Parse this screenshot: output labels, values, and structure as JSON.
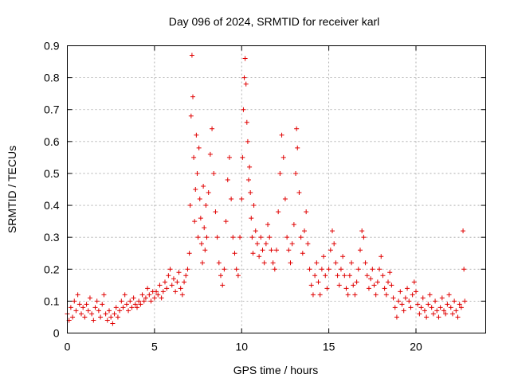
{
  "chart_data": {
    "type": "scatter",
    "title": "Day 096 of 2024, SRMTID for receiver karl",
    "xlabel": "GPS time / hours",
    "ylabel": "SRMTID / TECUs",
    "xlim": [
      0,
      24
    ],
    "ylim": [
      0,
      0.9
    ],
    "xticks": [
      0,
      5,
      10,
      15,
      20
    ],
    "xtick_labels": [
      "0",
      "5",
      "10",
      "15",
      "20"
    ],
    "yticks": [
      0,
      0.1,
      0.2,
      0.3,
      0.4,
      0.5,
      0.6,
      0.7,
      0.8,
      0.9
    ],
    "ytick_labels": [
      "0",
      "0.1",
      "0.2",
      "0.3",
      "0.4",
      "0.5",
      "0.6",
      "0.7",
      "0.8",
      "0.9"
    ],
    "grid": true,
    "marker": "+",
    "color": "#e00000",
    "series": [
      {
        "name": "SRMTID",
        "points": [
          [
            0.0,
            0.06
          ],
          [
            0.1,
            0.04
          ],
          [
            0.2,
            0.08
          ],
          [
            0.3,
            0.05
          ],
          [
            0.4,
            0.1
          ],
          [
            0.5,
            0.07
          ],
          [
            0.6,
            0.12
          ],
          [
            0.7,
            0.09
          ],
          [
            0.8,
            0.06
          ],
          [
            0.9,
            0.08
          ],
          [
            1.0,
            0.05
          ],
          [
            1.1,
            0.09
          ],
          [
            1.2,
            0.07
          ],
          [
            1.3,
            0.11
          ],
          [
            1.4,
            0.06
          ],
          [
            1.5,
            0.04
          ],
          [
            1.6,
            0.08
          ],
          [
            1.7,
            0.1
          ],
          [
            1.8,
            0.07
          ],
          [
            1.9,
            0.05
          ],
          [
            2.0,
            0.09
          ],
          [
            2.1,
            0.12
          ],
          [
            2.2,
            0.06
          ],
          [
            2.3,
            0.04
          ],
          [
            2.4,
            0.07
          ],
          [
            2.5,
            0.05
          ],
          [
            2.6,
            0.03
          ],
          [
            2.7,
            0.06
          ],
          [
            2.8,
            0.08
          ],
          [
            2.9,
            0.05
          ],
          [
            3.0,
            0.07
          ],
          [
            3.1,
            0.1
          ],
          [
            3.2,
            0.08
          ],
          [
            3.3,
            0.12
          ],
          [
            3.4,
            0.09
          ],
          [
            3.5,
            0.07
          ],
          [
            3.6,
            0.1
          ],
          [
            3.7,
            0.08
          ],
          [
            3.8,
            0.11
          ],
          [
            3.9,
            0.09
          ],
          [
            4.0,
            0.08
          ],
          [
            4.1,
            0.1
          ],
          [
            4.2,
            0.09
          ],
          [
            4.3,
            0.12
          ],
          [
            4.4,
            0.1
          ],
          [
            4.5,
            0.11
          ],
          [
            4.6,
            0.14
          ],
          [
            4.7,
            0.12
          ],
          [
            4.8,
            0.1
          ],
          [
            4.9,
            0.13
          ],
          [
            5.0,
            0.11
          ],
          [
            5.1,
            0.13
          ],
          [
            5.2,
            0.12
          ],
          [
            5.3,
            0.15
          ],
          [
            5.4,
            0.11
          ],
          [
            5.5,
            0.13
          ],
          [
            5.6,
            0.16
          ],
          [
            5.7,
            0.14
          ],
          [
            5.8,
            0.18
          ],
          [
            5.9,
            0.2
          ],
          [
            6.0,
            0.15
          ],
          [
            6.1,
            0.17
          ],
          [
            6.2,
            0.13
          ],
          [
            6.3,
            0.16
          ],
          [
            6.4,
            0.19
          ],
          [
            6.5,
            0.14
          ],
          [
            6.6,
            0.12
          ],
          [
            6.7,
            0.16
          ],
          [
            6.8,
            0.18
          ],
          [
            6.9,
            0.2
          ],
          [
            7.0,
            0.25
          ],
          [
            7.05,
            0.4
          ],
          [
            7.1,
            0.68
          ],
          [
            7.15,
            0.87
          ],
          [
            7.2,
            0.74
          ],
          [
            7.25,
            0.55
          ],
          [
            7.3,
            0.35
          ],
          [
            7.35,
            0.45
          ],
          [
            7.4,
            0.62
          ],
          [
            7.45,
            0.5
          ],
          [
            7.5,
            0.3
          ],
          [
            7.55,
            0.58
          ],
          [
            7.6,
            0.42
          ],
          [
            7.65,
            0.36
          ],
          [
            7.7,
            0.28
          ],
          [
            7.75,
            0.22
          ],
          [
            7.8,
            0.46
          ],
          [
            7.85,
            0.33
          ],
          [
            7.9,
            0.26
          ],
          [
            7.95,
            0.4
          ],
          [
            8.0,
            0.3
          ],
          [
            8.1,
            0.44
          ],
          [
            8.2,
            0.56
          ],
          [
            8.3,
            0.64
          ],
          [
            8.4,
            0.5
          ],
          [
            8.5,
            0.38
          ],
          [
            8.6,
            0.3
          ],
          [
            8.7,
            0.22
          ],
          [
            8.8,
            0.18
          ],
          [
            8.9,
            0.15
          ],
          [
            9.0,
            0.2
          ],
          [
            9.1,
            0.35
          ],
          [
            9.2,
            0.48
          ],
          [
            9.3,
            0.55
          ],
          [
            9.4,
            0.42
          ],
          [
            9.5,
            0.3
          ],
          [
            9.6,
            0.25
          ],
          [
            9.7,
            0.2
          ],
          [
            9.8,
            0.18
          ],
          [
            9.9,
            0.3
          ],
          [
            10.0,
            0.42
          ],
          [
            10.05,
            0.55
          ],
          [
            10.1,
            0.7
          ],
          [
            10.15,
            0.8
          ],
          [
            10.2,
            0.86
          ],
          [
            10.25,
            0.78
          ],
          [
            10.3,
            0.66
          ],
          [
            10.35,
            0.6
          ],
          [
            10.4,
            0.48
          ],
          [
            10.45,
            0.52
          ],
          [
            10.5,
            0.44
          ],
          [
            10.55,
            0.36
          ],
          [
            10.6,
            0.3
          ],
          [
            10.65,
            0.25
          ],
          [
            10.7,
            0.4
          ],
          [
            10.8,
            0.32
          ],
          [
            10.9,
            0.28
          ],
          [
            11.0,
            0.24
          ],
          [
            11.1,
            0.3
          ],
          [
            11.2,
            0.26
          ],
          [
            11.3,
            0.22
          ],
          [
            11.4,
            0.28
          ],
          [
            11.5,
            0.34
          ],
          [
            11.6,
            0.3
          ],
          [
            11.7,
            0.26
          ],
          [
            11.8,
            0.22
          ],
          [
            11.9,
            0.2
          ],
          [
            12.0,
            0.26
          ],
          [
            12.1,
            0.38
          ],
          [
            12.2,
            0.5
          ],
          [
            12.3,
            0.62
          ],
          [
            12.4,
            0.55
          ],
          [
            12.5,
            0.42
          ],
          [
            12.6,
            0.3
          ],
          [
            12.7,
            0.26
          ],
          [
            12.8,
            0.22
          ],
          [
            12.9,
            0.28
          ],
          [
            13.0,
            0.34
          ],
          [
            13.1,
            0.5
          ],
          [
            13.15,
            0.64
          ],
          [
            13.2,
            0.58
          ],
          [
            13.3,
            0.44
          ],
          [
            13.4,
            0.3
          ],
          [
            13.5,
            0.25
          ],
          [
            13.6,
            0.32
          ],
          [
            13.7,
            0.38
          ],
          [
            13.8,
            0.28
          ],
          [
            13.9,
            0.2
          ],
          [
            14.0,
            0.15
          ],
          [
            14.1,
            0.12
          ],
          [
            14.2,
            0.18
          ],
          [
            14.3,
            0.22
          ],
          [
            14.4,
            0.16
          ],
          [
            14.5,
            0.12
          ],
          [
            14.6,
            0.2
          ],
          [
            14.7,
            0.24
          ],
          [
            14.8,
            0.18
          ],
          [
            14.9,
            0.14
          ],
          [
            15.0,
            0.2
          ],
          [
            15.1,
            0.26
          ],
          [
            15.2,
            0.32
          ],
          [
            15.3,
            0.28
          ],
          [
            15.4,
            0.22
          ],
          [
            15.5,
            0.18
          ],
          [
            15.6,
            0.15
          ],
          [
            15.7,
            0.2
          ],
          [
            15.8,
            0.24
          ],
          [
            15.9,
            0.18
          ],
          [
            16.0,
            0.14
          ],
          [
            16.1,
            0.12
          ],
          [
            16.2,
            0.18
          ],
          [
            16.3,
            0.22
          ],
          [
            16.4,
            0.15
          ],
          [
            16.5,
            0.12
          ],
          [
            16.6,
            0.16
          ],
          [
            16.7,
            0.2
          ],
          [
            16.8,
            0.26
          ],
          [
            16.9,
            0.32
          ],
          [
            17.0,
            0.3
          ],
          [
            17.1,
            0.22
          ],
          [
            17.2,
            0.18
          ],
          [
            17.3,
            0.14
          ],
          [
            17.4,
            0.17
          ],
          [
            17.5,
            0.2
          ],
          [
            17.6,
            0.15
          ],
          [
            17.7,
            0.12
          ],
          [
            17.8,
            0.16
          ],
          [
            17.9,
            0.2
          ],
          [
            18.0,
            0.24
          ],
          [
            18.1,
            0.18
          ],
          [
            18.2,
            0.14
          ],
          [
            18.3,
            0.12
          ],
          [
            18.4,
            0.16
          ],
          [
            18.5,
            0.19
          ],
          [
            18.6,
            0.15
          ],
          [
            18.7,
            0.11
          ],
          [
            18.8,
            0.08
          ],
          [
            18.9,
            0.05
          ],
          [
            19.0,
            0.1
          ],
          [
            19.1,
            0.13
          ],
          [
            19.2,
            0.09
          ],
          [
            19.3,
            0.07
          ],
          [
            19.4,
            0.11
          ],
          [
            19.5,
            0.14
          ],
          [
            19.6,
            0.1
          ],
          [
            19.7,
            0.08
          ],
          [
            19.8,
            0.12
          ],
          [
            19.9,
            0.16
          ],
          [
            20.0,
            0.13
          ],
          [
            20.1,
            0.09
          ],
          [
            20.2,
            0.06
          ],
          [
            20.3,
            0.08
          ],
          [
            20.4,
            0.11
          ],
          [
            20.5,
            0.07
          ],
          [
            20.6,
            0.05
          ],
          [
            20.7,
            0.09
          ],
          [
            20.8,
            0.12
          ],
          [
            20.9,
            0.08
          ],
          [
            21.0,
            0.06
          ],
          [
            21.1,
            0.1
          ],
          [
            21.2,
            0.07
          ],
          [
            21.3,
            0.05
          ],
          [
            21.4,
            0.08
          ],
          [
            21.5,
            0.11
          ],
          [
            21.6,
            0.07
          ],
          [
            21.7,
            0.06
          ],
          [
            21.8,
            0.09
          ],
          [
            21.9,
            0.12
          ],
          [
            22.0,
            0.08
          ],
          [
            22.1,
            0.06
          ],
          [
            22.2,
            0.1
          ],
          [
            22.3,
            0.07
          ],
          [
            22.4,
            0.05
          ],
          [
            22.5,
            0.09
          ],
          [
            22.6,
            0.08
          ],
          [
            22.7,
            0.32
          ],
          [
            22.75,
            0.2
          ],
          [
            22.8,
            0.1
          ]
        ]
      }
    ]
  }
}
